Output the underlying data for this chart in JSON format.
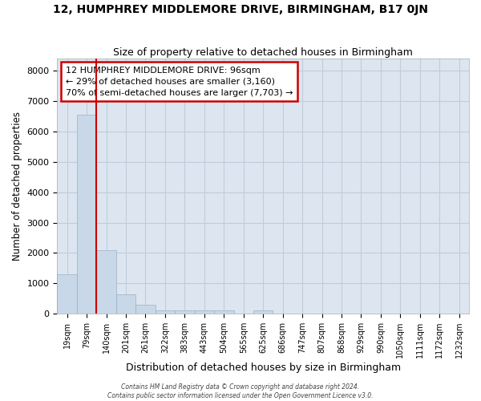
{
  "title": "12, HUMPHREY MIDDLEMORE DRIVE, BIRMINGHAM, B17 0JN",
  "subtitle": "Size of property relative to detached houses in Birmingham",
  "xlabel": "Distribution of detached houses by size in Birmingham",
  "ylabel": "Number of detached properties",
  "bar_labels": [
    "19sqm",
    "79sqm",
    "140sqm",
    "201sqm",
    "261sqm",
    "322sqm",
    "383sqm",
    "443sqm",
    "504sqm",
    "565sqm",
    "625sqm",
    "686sqm",
    "747sqm",
    "807sqm",
    "868sqm",
    "929sqm",
    "990sqm",
    "1050sqm",
    "1111sqm",
    "1172sqm",
    "1232sqm"
  ],
  "bar_values": [
    1300,
    6550,
    2100,
    630,
    300,
    120,
    100,
    100,
    100,
    0,
    100,
    0,
    0,
    0,
    0,
    0,
    0,
    0,
    0,
    0,
    0
  ],
  "bar_color": "#c8d8e8",
  "bar_edgecolor": "#9ab0c4",
  "grid_color": "#c0ccdc",
  "background_color": "#dde6f0",
  "vline_x": 1.5,
  "vline_color": "#cc0000",
  "annotation_text": "12 HUMPHREY MIDDLEMORE DRIVE: 96sqm\n← 29% of detached houses are smaller (3,160)\n70% of semi-detached houses are larger (7,703) →",
  "annotation_box_edgecolor": "#cc0000",
  "ylim": [
    0,
    8400
  ],
  "yticks": [
    0,
    1000,
    2000,
    3000,
    4000,
    5000,
    6000,
    7000,
    8000
  ],
  "footer_line1": "Contains HM Land Registry data © Crown copyright and database right 2024.",
  "footer_line2": "Contains public sector information licensed under the Open Government Licence v3.0."
}
